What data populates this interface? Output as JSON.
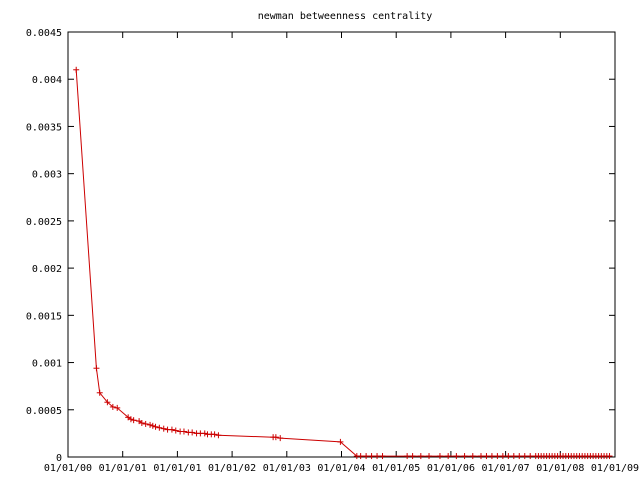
{
  "chart_data": {
    "type": "line",
    "title": "newman betweenness centrality",
    "xlabel": "",
    "ylabel": "",
    "ylim": [
      0,
      0.0045
    ],
    "xlim": [
      "01/01/00",
      "01/01/09"
    ],
    "y_ticks": [
      "0",
      "0.0005",
      "0.001",
      "0.0015",
      "0.002",
      "0.0025",
      "0.003",
      "0.0035",
      "0.004",
      "0.0045"
    ],
    "x_ticks": [
      "01/01/00",
      "01/01/01",
      "01/01/01",
      "01/01/02",
      "01/01/03",
      "01/01/04",
      "01/01/05",
      "01/01/06",
      "01/01/07",
      "01/01/08",
      "01/01/09"
    ],
    "x_tick_positions": [
      0,
      1,
      2,
      3,
      4,
      5,
      6,
      7,
      8,
      9,
      10
    ],
    "x_range": [
      0,
      10
    ],
    "marker": "plus",
    "grid": false,
    "series": [
      {
        "name": "",
        "color": "#cc0000",
        "x": [
          0.15,
          0.52,
          0.58,
          0.72,
          0.82,
          0.9,
          1.1,
          1.15,
          1.2,
          1.3,
          1.35,
          1.42,
          1.5,
          1.55,
          1.6,
          1.67,
          1.75,
          1.82,
          1.9,
          1.97,
          2.05,
          2.12,
          2.2,
          2.27,
          2.35,
          2.42,
          2.5,
          2.55,
          2.62,
          2.68,
          2.75,
          3.75,
          3.8,
          3.88,
          4.98,
          5.28,
          5.35,
          5.45,
          5.55,
          5.65,
          5.75,
          6.2,
          6.3,
          6.45,
          6.6,
          6.8,
          6.95,
          7.1,
          7.25,
          7.4,
          7.55,
          7.65,
          7.75,
          7.85,
          7.95,
          8.05,
          8.15,
          8.25,
          8.35,
          8.45,
          8.55,
          8.6,
          8.65,
          8.7,
          8.75,
          8.8,
          8.85,
          8.9,
          8.95,
          9.0,
          9.05,
          9.1,
          9.15,
          9.2,
          9.25,
          9.3,
          9.35,
          9.4,
          9.45,
          9.5,
          9.55,
          9.6,
          9.65,
          9.7,
          9.75,
          9.8,
          9.85,
          9.9
        ],
        "y": [
          0.0041,
          0.00094,
          0.00068,
          0.00058,
          0.00053,
          0.00052,
          0.00042,
          0.0004,
          0.00039,
          0.00038,
          0.00036,
          0.00035,
          0.00034,
          0.00033,
          0.00032,
          0.00031,
          0.0003,
          0.00029,
          0.00029,
          0.00028,
          0.00027,
          0.00027,
          0.00026,
          0.00026,
          0.00025,
          0.00025,
          0.00025,
          0.00024,
          0.00024,
          0.00024,
          0.00023,
          0.00021,
          0.00021,
          0.0002,
          0.00016,
          1e-05,
          1e-05,
          1e-05,
          1e-05,
          1e-05,
          1e-05,
          1e-05,
          1e-05,
          1e-05,
          1e-05,
          1e-05,
          1e-05,
          1e-05,
          1e-05,
          1e-05,
          1e-05,
          1e-05,
          1e-05,
          1e-05,
          1e-05,
          1e-05,
          1e-05,
          1e-05,
          1e-05,
          1e-05,
          1e-05,
          1e-05,
          1e-05,
          1e-05,
          1e-05,
          1e-05,
          1e-05,
          1e-05,
          1e-05,
          1e-05,
          1e-05,
          1e-05,
          1e-05,
          1e-05,
          1e-05,
          1e-05,
          1e-05,
          1e-05,
          1e-05,
          1e-05,
          1e-05,
          1e-05,
          1e-05,
          1e-05,
          1e-05,
          1e-05,
          1e-05,
          1e-05
        ]
      }
    ]
  }
}
